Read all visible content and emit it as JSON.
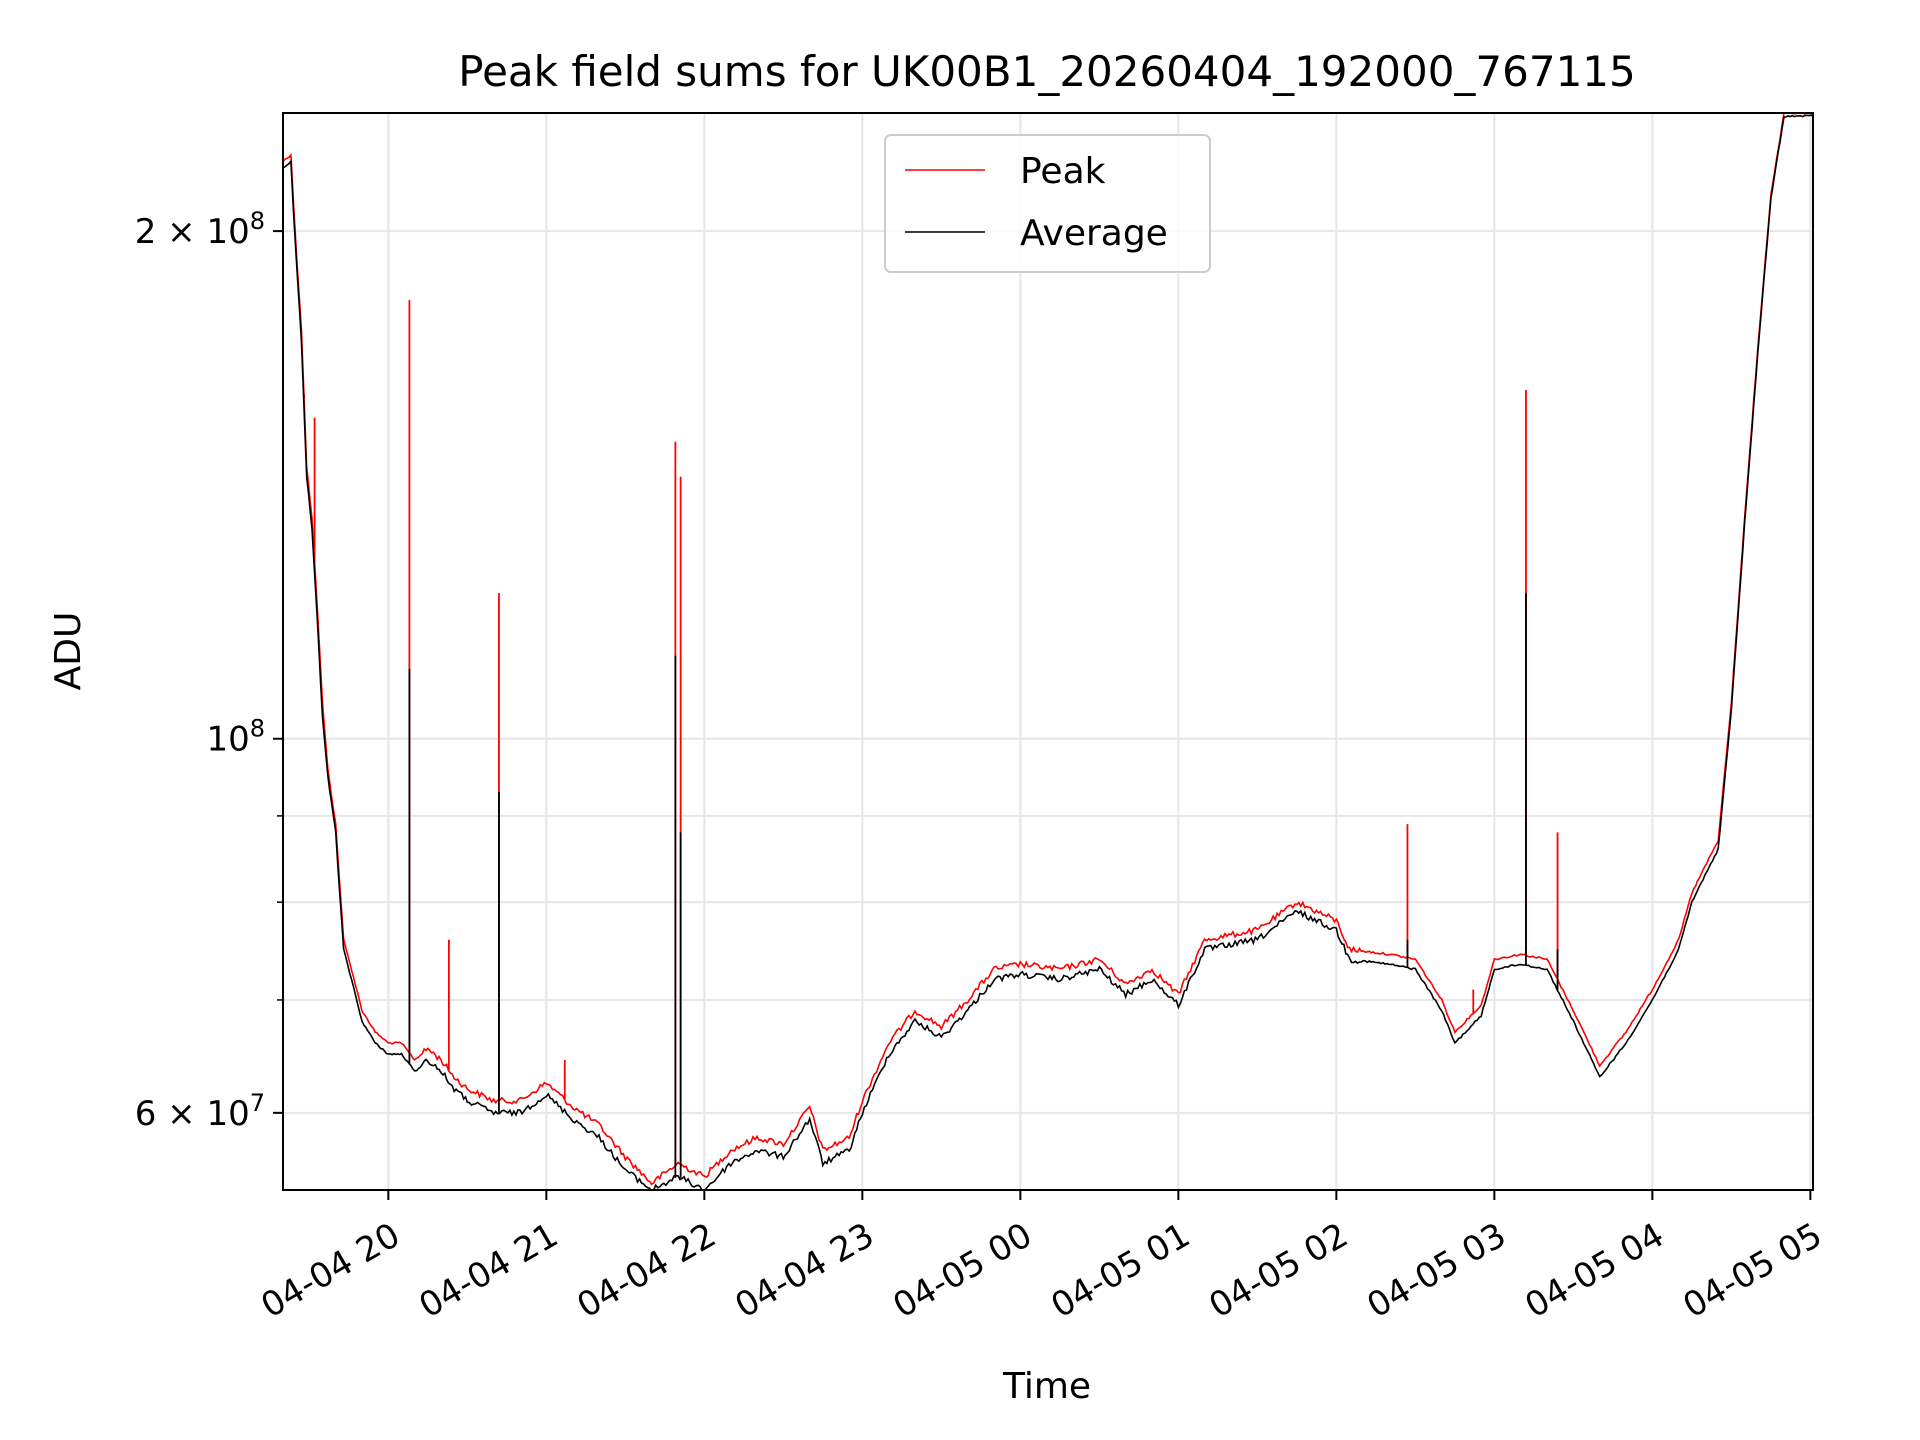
{
  "chart_data": {
    "type": "line",
    "title": "Peak field sums for UK00B1_20260404_192000_767115",
    "xlabel": "Time",
    "ylabel": "ADU",
    "yscale": "log",
    "grid": true,
    "legend_position": "upper center",
    "xlim": [
      "2026-04-04 19:20",
      "2026-04-05 05:01"
    ],
    "ylim": [
      54000000,
      235000000
    ],
    "x_ticks": [
      {
        "at": "2026-04-04 20:00",
        "label": "04-04 20"
      },
      {
        "at": "2026-04-04 21:00",
        "label": "04-04 21"
      },
      {
        "at": "2026-04-04 22:00",
        "label": "04-04 22"
      },
      {
        "at": "2026-04-04 23:00",
        "label": "04-04 23"
      },
      {
        "at": "2026-04-05 00:00",
        "label": "04-05 00"
      },
      {
        "at": "2026-04-05 01:00",
        "label": "04-05 01"
      },
      {
        "at": "2026-04-05 02:00",
        "label": "04-05 02"
      },
      {
        "at": "2026-04-05 03:00",
        "label": "04-05 03"
      },
      {
        "at": "2026-04-05 04:00",
        "label": "04-05 04"
      },
      {
        "at": "2026-04-05 05:00",
        "label": "04-05 05"
      }
    ],
    "y_ticks": [
      {
        "value": 60000000,
        "base": "6 × 10",
        "exp": "7"
      },
      {
        "value": 100000000,
        "base": "10",
        "exp": "8"
      },
      {
        "value": 200000000,
        "base": "2 × 10",
        "exp": "8"
      }
    ],
    "y_minor_ticks": [
      70000000,
      80000000,
      90000000
    ],
    "series": [
      {
        "name": "Peak",
        "color": "#ff0000",
        "points": [
          [
            "2026-04-04 19:20",
            220000000.0
          ],
          [
            "2026-04-04 19:23",
            222000000.0
          ],
          [
            "2026-04-04 19:24",
            208000000.0
          ],
          [
            "2026-04-04 19:25",
            195000000.0
          ],
          [
            "2026-04-04 19:27",
            175000000.0
          ],
          [
            "2026-04-04 19:29",
            145000000.0
          ],
          [
            "2026-04-04 19:31",
            135000000.0
          ],
          [
            "2026-04-04 19:33",
            120000000.0
          ],
          [
            "2026-04-04 19:35",
            105000000.0
          ],
          [
            "2026-04-04 19:37",
            96000000.0
          ],
          [
            "2026-04-04 19:40",
            89000000.0
          ],
          [
            "2026-04-04 19:43",
            76000000.0
          ],
          [
            "2026-04-04 19:46",
            73000000.0
          ],
          [
            "2026-04-04 19:50",
            69000000.0
          ],
          [
            "2026-04-04 19:55",
            67000000.0
          ],
          [
            "2026-04-04 20:00",
            66000000.0
          ],
          [
            "2026-04-04 20:05",
            66000000.0
          ],
          [
            "2026-04-04 20:10",
            64500000.0
          ],
          [
            "2026-04-04 20:15",
            65500000.0
          ],
          [
            "2026-04-04 20:20",
            64500000.0
          ],
          [
            "2026-04-04 20:25",
            63000000.0
          ],
          [
            "2026-04-04 20:30",
            62000000.0
          ],
          [
            "2026-04-04 20:40",
            61000000.0
          ],
          [
            "2026-04-04 20:50",
            61000000.0
          ],
          [
            "2026-04-04 21:00",
            62500000.0
          ],
          [
            "2026-04-04 21:10",
            60500000.0
          ],
          [
            "2026-04-04 21:20",
            59000000.0
          ],
          [
            "2026-04-04 21:30",
            56500000.0
          ],
          [
            "2026-04-04 21:40",
            54500000.0
          ],
          [
            "2026-04-04 21:50",
            56000000.0
          ],
          [
            "2026-04-04 22:00",
            55000000.0
          ],
          [
            "2026-04-04 22:10",
            57000000.0
          ],
          [
            "2026-04-04 22:20",
            58000000.0
          ],
          [
            "2026-04-04 22:30",
            57500000.0
          ],
          [
            "2026-04-04 22:40",
            60500000.0
          ],
          [
            "2026-04-04 22:45",
            57000000.0
          ],
          [
            "2026-04-04 22:55",
            58000000.0
          ],
          [
            "2026-04-04 23:00",
            61000000.0
          ],
          [
            "2026-04-04 23:10",
            66000000.0
          ],
          [
            "2026-04-04 23:20",
            69000000.0
          ],
          [
            "2026-04-04 23:30",
            67500000.0
          ],
          [
            "2026-04-04 23:40",
            70000000.0
          ],
          [
            "2026-04-04 23:50",
            73000000.0
          ],
          [
            "2026-04-05 00:00",
            73500000.0
          ],
          [
            "2026-04-05 00:15",
            73000000.0
          ],
          [
            "2026-04-05 00:30",
            74000000.0
          ],
          [
            "2026-04-05 00:40",
            71500000.0
          ],
          [
            "2026-04-05 00:50",
            73000000.0
          ],
          [
            "2026-04-05 01:00",
            70500000.0
          ],
          [
            "2026-04-05 01:10",
            76000000.0
          ],
          [
            "2026-04-05 01:30",
            77000000.0
          ],
          [
            "2026-04-05 01:45",
            80000000.0
          ],
          [
            "2026-04-05 02:00",
            78000000.0
          ],
          [
            "2026-04-05 02:05",
            75000000.0
          ],
          [
            "2026-04-05 02:20",
            74500000.0
          ],
          [
            "2026-04-05 02:30",
            74000000.0
          ],
          [
            "2026-04-05 02:40",
            70000000.0
          ],
          [
            "2026-04-05 02:45",
            67000000.0
          ],
          [
            "2026-04-05 02:55",
            69500000.0
          ],
          [
            "2026-04-05 03:00",
            74000000.0
          ],
          [
            "2026-04-05 03:10",
            74500000.0
          ],
          [
            "2026-04-05 03:20",
            74000000.0
          ],
          [
            "2026-04-05 03:30",
            69000000.0
          ],
          [
            "2026-04-05 03:40",
            64000000.0
          ],
          [
            "2026-04-05 03:50",
            67000000.0
          ],
          [
            "2026-04-05 04:00",
            71000000.0
          ],
          [
            "2026-04-05 04:10",
            76000000.0
          ],
          [
            "2026-04-05 04:15",
            81000000.0
          ],
          [
            "2026-04-05 04:20",
            84000000.0
          ],
          [
            "2026-04-05 04:25",
            87000000.0
          ],
          [
            "2026-04-05 04:30",
            105000000.0
          ],
          [
            "2026-04-05 04:35",
            135000000.0
          ],
          [
            "2026-04-05 04:40",
            170000000.0
          ],
          [
            "2026-04-05 04:45",
            210000000.0
          ],
          [
            "2026-04-05 04:50",
            235000000.0
          ],
          [
            "2026-04-05 05:01",
            235000000.0
          ]
        ],
        "spikes": [
          [
            "2026-04-04 19:28",
            160000000.0
          ],
          [
            "2026-04-04 19:32",
            155000000.0
          ],
          [
            "2026-04-04 20:08",
            182000000.0
          ],
          [
            "2026-04-04 20:23",
            76000000.0
          ],
          [
            "2026-04-04 20:42",
            122000000.0
          ],
          [
            "2026-04-04 21:07",
            64500000.0
          ],
          [
            "2026-04-04 21:49",
            150000000.0
          ],
          [
            "2026-04-04 21:51",
            143000000.0
          ],
          [
            "2026-04-05 02:27",
            89000000.0
          ],
          [
            "2026-04-05 02:52",
            71000000.0
          ],
          [
            "2026-04-05 03:12",
            161000000.0
          ],
          [
            "2026-04-05 03:24",
            88000000.0
          ]
        ]
      },
      {
        "name": "Average",
        "color": "#000000",
        "points": [
          [
            "2026-04-04 19:20",
            218000000.0
          ],
          [
            "2026-04-04 19:23",
            220000000.0
          ],
          [
            "2026-04-04 19:24",
            205000000.0
          ],
          [
            "2026-04-04 19:25",
            193000000.0
          ],
          [
            "2026-04-04 19:27",
            172000000.0
          ],
          [
            "2026-04-04 19:29",
            143000000.0
          ],
          [
            "2026-04-04 19:31",
            133000000.0
          ],
          [
            "2026-04-04 19:33",
            118000000.0
          ],
          [
            "2026-04-04 19:35",
            103000000.0
          ],
          [
            "2026-04-04 19:37",
            95000000.0
          ],
          [
            "2026-04-04 19:40",
            88000000.0
          ],
          [
            "2026-04-04 19:43",
            75000000.0
          ],
          [
            "2026-04-04 19:46",
            72000000.0
          ],
          [
            "2026-04-04 19:50",
            68000000.0
          ],
          [
            "2026-04-04 19:55",
            66000000.0
          ],
          [
            "2026-04-04 20:00",
            65000000.0
          ],
          [
            "2026-04-04 20:05",
            65000000.0
          ],
          [
            "2026-04-04 20:10",
            63500000.0
          ],
          [
            "2026-04-04 20:15",
            64500000.0
          ],
          [
            "2026-04-04 20:20",
            63500000.0
          ],
          [
            "2026-04-04 20:25",
            62000000.0
          ],
          [
            "2026-04-04 20:30",
            61000000.0
          ],
          [
            "2026-04-04 20:40",
            60000000.0
          ],
          [
            "2026-04-04 20:50",
            60000000.0
          ],
          [
            "2026-04-04 21:00",
            61500000.0
          ],
          [
            "2026-04-04 21:10",
            59500000.0
          ],
          [
            "2026-04-04 21:20",
            58000000.0
          ],
          [
            "2026-04-04 21:30",
            55500000.0
          ],
          [
            "2026-04-04 21:40",
            54000000.0
          ],
          [
            "2026-04-04 21:50",
            55000000.0
          ],
          [
            "2026-04-04 22:00",
            54000000.0
          ],
          [
            "2026-04-04 22:10",
            56000000.0
          ],
          [
            "2026-04-04 22:20",
            57000000.0
          ],
          [
            "2026-04-04 22:30",
            56500000.0
          ],
          [
            "2026-04-04 22:40",
            59500000.0
          ],
          [
            "2026-04-04 22:45",
            56000000.0
          ],
          [
            "2026-04-04 22:55",
            57000000.0
          ],
          [
            "2026-04-04 23:00",
            60000000.0
          ],
          [
            "2026-04-04 23:10",
            65000000.0
          ],
          [
            "2026-04-04 23:20",
            68000000.0
          ],
          [
            "2026-04-04 23:30",
            66500000.0
          ],
          [
            "2026-04-04 23:40",
            69000000.0
          ],
          [
            "2026-04-04 23:50",
            72000000.0
          ],
          [
            "2026-04-05 00:00",
            72500000.0
          ],
          [
            "2026-04-05 00:15",
            72000000.0
          ],
          [
            "2026-04-05 00:30",
            73000000.0
          ],
          [
            "2026-04-05 00:40",
            70500000.0
          ],
          [
            "2026-04-05 00:50",
            72000000.0
          ],
          [
            "2026-04-05 01:00",
            69500000.0
          ],
          [
            "2026-04-05 01:10",
            75000000.0
          ],
          [
            "2026-04-05 01:30",
            76000000.0
          ],
          [
            "2026-04-05 01:45",
            79000000.0
          ],
          [
            "2026-04-05 02:00",
            77000000.0
          ],
          [
            "2026-04-05 02:05",
            74000000.0
          ],
          [
            "2026-04-05 02:20",
            73500000.0
          ],
          [
            "2026-04-05 02:30",
            73000000.0
          ],
          [
            "2026-04-05 02:40",
            69000000.0
          ],
          [
            "2026-04-05 02:45",
            66000000.0
          ],
          [
            "2026-04-05 02:55",
            68500000.0
          ],
          [
            "2026-04-05 03:00",
            73000000.0
          ],
          [
            "2026-04-05 03:10",
            73500000.0
          ],
          [
            "2026-04-05 03:20",
            73000000.0
          ],
          [
            "2026-04-05 03:30",
            68000000.0
          ],
          [
            "2026-04-05 03:40",
            63000000.0
          ],
          [
            "2026-04-05 03:50",
            66000000.0
          ],
          [
            "2026-04-05 04:00",
            70000000.0
          ],
          [
            "2026-04-05 04:10",
            75000000.0
          ],
          [
            "2026-04-05 04:15",
            80000000.0
          ],
          [
            "2026-04-05 04:20",
            83000000.0
          ],
          [
            "2026-04-05 04:25",
            86000000.0
          ],
          [
            "2026-04-05 04:30",
            104000000.0
          ],
          [
            "2026-04-05 04:35",
            134000000.0
          ],
          [
            "2026-04-05 04:40",
            169000000.0
          ],
          [
            "2026-04-05 04:45",
            209000000.0
          ],
          [
            "2026-04-05 04:50",
            234000000.0
          ],
          [
            "2026-04-05 05:01",
            234000000.0
          ]
        ],
        "spikes": [
          [
            "2026-04-04 20:08",
            110000000.0
          ],
          [
            "2026-04-04 20:42",
            93000000.0
          ],
          [
            "2026-04-04 21:49",
            112000000.0
          ],
          [
            "2026-04-04 21:51",
            88000000.0
          ],
          [
            "2026-04-05 03:12",
            122000000.0
          ],
          [
            "2026-04-05 02:27",
            76000000.0
          ],
          [
            "2026-04-05 03:24",
            75000000.0
          ]
        ]
      }
    ]
  }
}
